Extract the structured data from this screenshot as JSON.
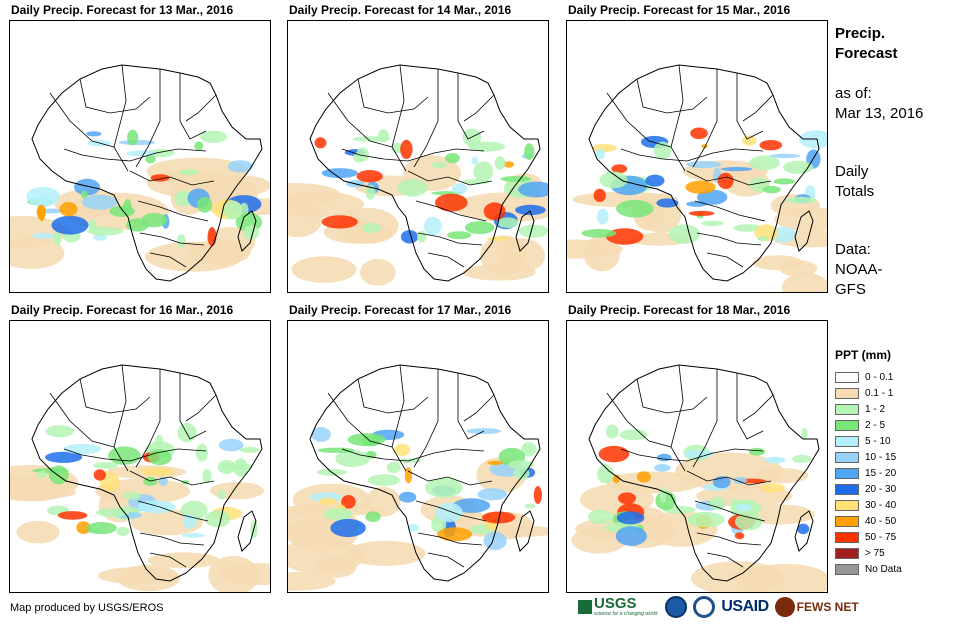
{
  "panels": [
    {
      "title": "Daily Precip. Forecast for 13 Mar., 2016"
    },
    {
      "title": "Daily Precip. Forecast for 14 Mar., 2016"
    },
    {
      "title": "Daily Precip. Forecast for 15 Mar., 2016"
    },
    {
      "title": "Daily Precip. Forecast for 16 Mar., 2016"
    },
    {
      "title": "Daily Precip. Forecast for 17 Mar., 2016"
    },
    {
      "title": "Daily Precip. Forecast for 18 Mar., 2016"
    }
  ],
  "sidebar": {
    "title_line1": "Precip.",
    "title_line2": "Forecast",
    "asof_label": "as of:",
    "asof_date": "Mar 13, 2016",
    "totals_line1": "Daily",
    "totals_line2": "Totals",
    "data_line1": "Data:",
    "data_line2": "NOAA-",
    "data_line3": "GFS"
  },
  "legend": {
    "title": "PPT (mm)",
    "items": [
      {
        "label": "0 - 0.1",
        "color": "#ffffff"
      },
      {
        "label": "0.1 - 1",
        "color": "#f5dcb4"
      },
      {
        "label": "1 - 2",
        "color": "#b4f5b4"
      },
      {
        "label": "2 - 5",
        "color": "#78e678"
      },
      {
        "label": "5 - 10",
        "color": "#b4f0fa"
      },
      {
        "label": "10 - 15",
        "color": "#96d2fa"
      },
      {
        "label": "15 - 20",
        "color": "#50a5f5"
      },
      {
        "label": "20 - 30",
        "color": "#1e6eeb"
      },
      {
        "label": "30 - 40",
        "color": "#ffe178"
      },
      {
        "label": "40 - 50",
        "color": "#ffa000"
      },
      {
        "label": "50 - 75",
        "color": "#ff3200"
      },
      {
        "label": "> 75",
        "color": "#a51e1e"
      },
      {
        "label": "No Data",
        "color": "#969696"
      }
    ]
  },
  "footer": {
    "credit": "Map produced by USGS/EROS",
    "usgs_label": "USGS",
    "usgs_tagline": "science for a changing world",
    "usaid_label": "USAID",
    "fews_label": "FEWS NET"
  }
}
